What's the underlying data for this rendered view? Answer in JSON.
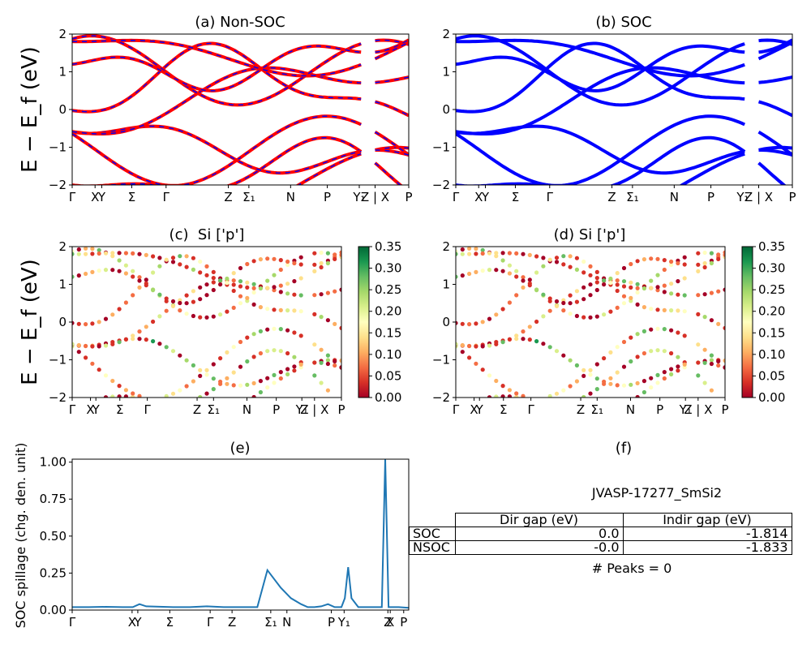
{
  "colors": {
    "nonsoc_line": "#ff0000",
    "nonsoc_dash": "#0000ff",
    "soc_line": "#0000ff",
    "spillage_line": "#1f77b4",
    "colormap": [
      "#a50026",
      "#d73027",
      "#f46d43",
      "#fdae61",
      "#fee08b",
      "#ffffbf",
      "#d9ef8b",
      "#a6d96a",
      "#66bd63",
      "#1a9850",
      "#006837"
    ]
  },
  "band_kpath": [
    {
      "label": "Γ",
      "x": 0.0
    },
    {
      "label": "X",
      "x": 0.068
    },
    {
      "label": "Y",
      "x": 0.088
    },
    {
      "label": "Σ",
      "x": 0.177
    },
    {
      "label": "Γ",
      "x": 0.279
    },
    {
      "label": "Z",
      "x": 0.464
    },
    {
      "label": "Σ₁",
      "x": 0.525
    },
    {
      "label": "N",
      "x": 0.649
    },
    {
      "label": "P",
      "x": 0.758
    },
    {
      "label": "Y₁",
      "x": 0.853
    },
    {
      "label": "Z | X",
      "x": 0.9
    },
    {
      "label": "P",
      "x": 1.0
    }
  ],
  "chart_data": [
    {
      "type": "line",
      "panel": "a",
      "title": "(a) Non-SOC",
      "ylabel": "E − E_f (eV)",
      "ylim": [
        -2,
        2
      ],
      "yticks": [
        -2,
        -1,
        0,
        1,
        2
      ],
      "series_style": "red solid with blue dashes",
      "note": "electronic band structure, spin-orbit coupling off"
    },
    {
      "type": "line",
      "panel": "b",
      "title": "(b) SOC",
      "ylim": [
        -2,
        2
      ],
      "yticks": [
        -2,
        -1,
        0,
        1,
        2
      ],
      "series_style": "blue solid",
      "note": "electronic band structure, spin-orbit coupling on"
    },
    {
      "type": "scatter",
      "panel": "c",
      "title": "(c)  Si ['p']",
      "ylabel": "E − E_f (eV)",
      "ylim": [
        -2,
        2
      ],
      "yticks": [
        -2,
        -1,
        0,
        1,
        2
      ],
      "colorbar": {
        "min": 0.0,
        "max": 0.35,
        "ticks": [
          "0.00",
          "0.05",
          "0.10",
          "0.15",
          "0.20",
          "0.25",
          "0.30",
          "0.35"
        ],
        "cmap": "RdYlGn"
      }
    },
    {
      "type": "scatter",
      "panel": "d",
      "title": "(d) Si ['p']",
      "ylim": [
        -2,
        2
      ],
      "yticks": [
        -2,
        -1,
        0,
        1,
        2
      ],
      "colorbar": {
        "min": 0.0,
        "max": 0.35,
        "ticks": [
          "0.00",
          "0.05",
          "0.10",
          "0.15",
          "0.20",
          "0.25",
          "0.30",
          "0.35"
        ],
        "cmap": "RdYlGn"
      }
    },
    {
      "type": "line",
      "panel": "e",
      "title": "(e)",
      "ylabel": "SOC spillage (chg. den. unit)",
      "ylim": [
        0,
        1.02
      ],
      "yticks": [
        "0.00",
        "0.25",
        "0.50",
        "0.75",
        "1.00"
      ],
      "xticks": [
        {
          "label": "Γ",
          "x": 0.0
        },
        {
          "label": "X",
          "x": 0.178
        },
        {
          "label": "Y",
          "x": 0.195
        },
        {
          "label": "Σ",
          "x": 0.29
        },
        {
          "label": "Γ",
          "x": 0.41
        },
        {
          "label": "Z",
          "x": 0.475
        },
        {
          "label": "Σ₁",
          "x": 0.59
        },
        {
          "label": "N",
          "x": 0.638
        },
        {
          "label": "P",
          "x": 0.77
        },
        {
          "label": "Y₁",
          "x": 0.808
        },
        {
          "label": "Z",
          "x": 0.938
        },
        {
          "label": "X",
          "x": 0.945
        },
        {
          "label": "P",
          "x": 0.985
        }
      ],
      "series": [
        {
          "x": [
            0.0,
            0.05,
            0.1,
            0.15,
            0.18,
            0.2,
            0.22,
            0.3,
            0.35,
            0.4,
            0.45,
            0.48,
            0.5,
            0.52,
            0.55,
            0.58,
            0.62,
            0.65,
            0.68,
            0.7,
            0.72,
            0.74,
            0.76,
            0.78,
            0.8,
            0.81,
            0.82,
            0.83,
            0.85,
            0.88,
            0.91,
            0.92,
            0.93,
            0.94,
            0.95,
            0.97,
            1.0
          ],
          "values": [
            0.02,
            0.02,
            0.022,
            0.02,
            0.02,
            0.04,
            0.025,
            0.02,
            0.02,
            0.025,
            0.02,
            0.02,
            0.02,
            0.02,
            0.02,
            0.27,
            0.15,
            0.08,
            0.04,
            0.02,
            0.02,
            0.025,
            0.04,
            0.02,
            0.02,
            0.08,
            0.29,
            0.08,
            0.02,
            0.02,
            0.02,
            0.02,
            1.02,
            0.02,
            0.02,
            0.02,
            0.015
          ]
        }
      ]
    },
    {
      "type": "table",
      "panel": "f",
      "title": "(f)",
      "subtitle": "JVASP-17277_SmSi2",
      "columns": [
        "Dir gap (eV)",
        "Indir gap (eV)"
      ],
      "rows": [
        {
          "name": "SOC",
          "values": [
            "0.0",
            "-1.814"
          ]
        },
        {
          "name": "NSOC",
          "values": [
            "-0.0",
            "-1.833"
          ]
        }
      ],
      "footer": "# Peaks = 0"
    }
  ]
}
